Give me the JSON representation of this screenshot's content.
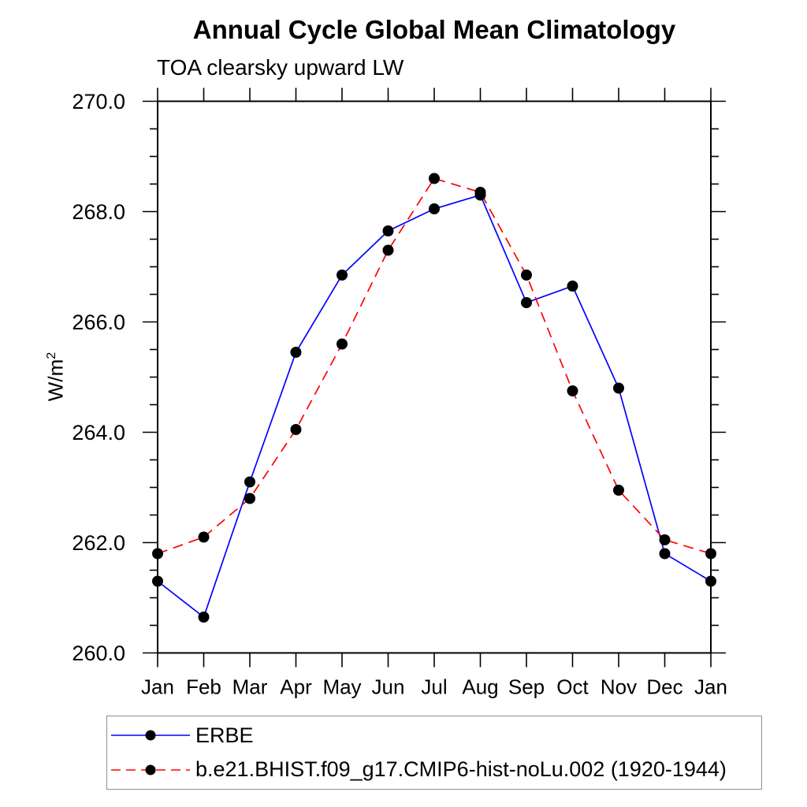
{
  "title": "Annual Cycle Global Mean Climatology",
  "subtitle": "TOA clearsky upward LW",
  "ylabel": {
    "base": "W/m",
    "sup": "2",
    "full": "W/m²"
  },
  "chart_data": {
    "type": "line",
    "title": "Annual Cycle Global Mean Climatology",
    "subtitle": "TOA clearsky upward LW",
    "ylabel": "W/m²",
    "categories": [
      "Jan",
      "Feb",
      "Mar",
      "Apr",
      "May",
      "Jun",
      "Jul",
      "Aug",
      "Sep",
      "Oct",
      "Nov",
      "Dec",
      "Jan"
    ],
    "series": [
      {
        "name": "ERBE",
        "color": "#0000ff",
        "line_style": "solid",
        "values": [
          261.3,
          260.65,
          263.1,
          265.45,
          266.85,
          267.65,
          268.05,
          268.3,
          266.35,
          266.65,
          264.8,
          261.8,
          261.3
        ]
      },
      {
        "name": "b.e21.BHIST.f09_g17.CMIP6-hist-noLu.002 (1920-1944)",
        "color": "#ff0000",
        "line_style": "dashed",
        "values": [
          261.8,
          262.1,
          262.8,
          264.05,
          265.6,
          267.3,
          268.6,
          268.35,
          266.85,
          264.75,
          262.95,
          262.05,
          261.8
        ]
      }
    ],
    "ylim": [
      260.0,
      270.0
    ],
    "ytick_major": 2.0,
    "ytick_minor": 0.5,
    "ytick_label_decimals": 1,
    "marker": "filled-circle",
    "marker_color": "#000000",
    "grid": false,
    "legend_position": "bottom-left-box",
    "frame": "box-outward-ticks"
  }
}
